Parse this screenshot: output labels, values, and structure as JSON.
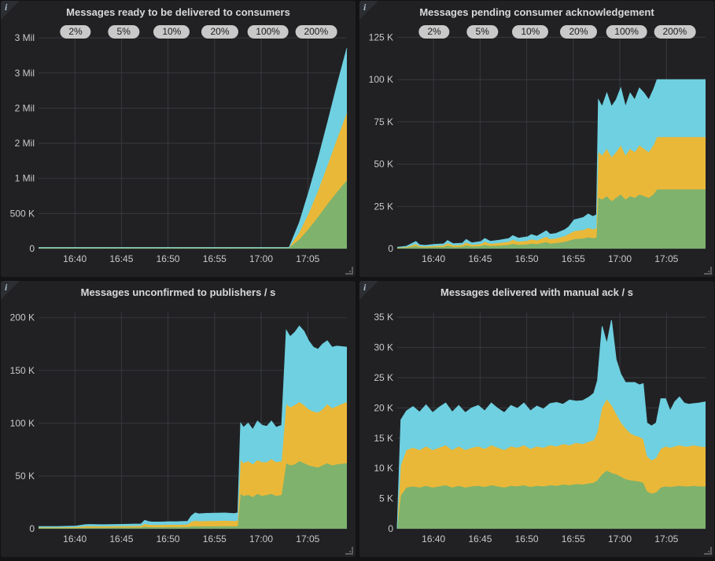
{
  "theme": {
    "page_bg": "#131316",
    "panel_bg": "#212124",
    "grid_color": "#37393d",
    "tick_text_color": "#c8c9cb",
    "title_color": "#d8d9da",
    "badge_bg": "#c9c9c9",
    "badge_text": "#1b1d1f",
    "series_green": "#7EB26D",
    "series_yellow": "#EAB839",
    "series_blue": "#6ED0E0"
  },
  "panels": [
    {
      "title": "Messages ready to be delivered to consumers",
      "badges": [
        "2%",
        "5%",
        "10%",
        "20%",
        "100%",
        "200%"
      ],
      "chart": 0
    },
    {
      "title": "Messages pending consumer acknowledgement",
      "badges": [
        "2%",
        "5%",
        "10%",
        "20%",
        "100%",
        "200%"
      ],
      "chart": 1
    },
    {
      "title": "Messages unconfirmed to publishers / s",
      "badges": [],
      "chart": 2
    },
    {
      "title": "Messages delivered with manual ack / s",
      "badges": [],
      "chart": 3
    }
  ],
  "chart_data": [
    {
      "type": "area",
      "stacked": true,
      "title": "Messages ready to be delivered to consumers",
      "legend": "none",
      "grid": true,
      "xlim": [
        0,
        33.1
      ],
      "ylim": [
        0,
        3080000
      ],
      "x_ticks": [
        {
          "t": 3.9,
          "label": "16:40"
        },
        {
          "t": 8.9,
          "label": "16:45"
        },
        {
          "t": 13.9,
          "label": "16:50"
        },
        {
          "t": 18.9,
          "label": "16:55"
        },
        {
          "t": 23.9,
          "label": "17:00"
        },
        {
          "t": 28.9,
          "label": "17:05"
        }
      ],
      "y_ticks": [
        {
          "v": 0,
          "label": "0"
        },
        {
          "v": 500000,
          "label": "500 K"
        },
        {
          "v": 1000000,
          "label": "1 Mil"
        },
        {
          "v": 1500000,
          "label": "2 Mil"
        },
        {
          "v": 2000000,
          "label": "2 Mil"
        },
        {
          "v": 2500000,
          "label": "3 Mil"
        },
        {
          "v": 3000000,
          "label": "3 Mil"
        }
      ],
      "x": [
        0,
        26.9,
        28,
        29,
        30,
        31,
        32,
        33.1
      ],
      "series": [
        {
          "name": "series-green",
          "color": "#7EB26D",
          "values": [
            15000,
            15000,
            130000,
            280000,
            450000,
            630000,
            800000,
            970000
          ]
        },
        {
          "name": "series-yellow",
          "color": "#EAB839",
          "values": [
            0,
            0,
            100000,
            220000,
            370000,
            545000,
            745000,
            960000
          ]
        },
        {
          "name": "series-blue",
          "color": "#6ED0E0",
          "values": [
            0,
            0,
            140000,
            300000,
            450000,
            600000,
            760000,
            920000
          ]
        }
      ]
    },
    {
      "type": "area",
      "stacked": true,
      "title": "Messages pending consumer acknowledgement",
      "legend": "none",
      "grid": true,
      "xlim": [
        0,
        33.1
      ],
      "ylim": [
        0,
        128000
      ],
      "x_ticks": [
        {
          "t": 3.9,
          "label": "16:40"
        },
        {
          "t": 8.9,
          "label": "16:45"
        },
        {
          "t": 13.9,
          "label": "16:50"
        },
        {
          "t": 18.9,
          "label": "16:55"
        },
        {
          "t": 23.9,
          "label": "17:00"
        },
        {
          "t": 28.9,
          "label": "17:05"
        }
      ],
      "y_ticks": [
        {
          "v": 0,
          "label": "0"
        },
        {
          "v": 25000,
          "label": "25 K"
        },
        {
          "v": 50000,
          "label": "50 K"
        },
        {
          "v": 75000,
          "label": "75 K"
        },
        {
          "v": 100000,
          "label": "100 K"
        },
        {
          "v": 125000,
          "label": "125 K"
        }
      ],
      "x": [
        0,
        1,
        2,
        2.4,
        3,
        4,
        5,
        5.4,
        6,
        7,
        7.4,
        8,
        9,
        9.4,
        10,
        11,
        12,
        12.4,
        13,
        14,
        14.4,
        15,
        16,
        16.4,
        17,
        18,
        18.4,
        19,
        20,
        20.5,
        21,
        21.4,
        21.6,
        22,
        22.5,
        23,
        23.5,
        24,
        24.5,
        25,
        25.5,
        26,
        26.5,
        27,
        27.5,
        27.9,
        29,
        33.1
      ],
      "series": [
        {
          "name": "series-green",
          "color": "#7EB26D",
          "values": [
            300,
            500,
            1500,
            800,
            700,
            900,
            1000,
            1800,
            1000,
            1100,
            2000,
            1200,
            1500,
            2200,
            1500,
            1800,
            2200,
            2800,
            2200,
            2500,
            3000,
            2600,
            3800,
            3000,
            3200,
            4000,
            4600,
            5600,
            6000,
            6600,
            6200,
            6500,
            30000,
            29000,
            31000,
            28000,
            30000,
            32000,
            29000,
            31000,
            30000,
            32000,
            31000,
            30000,
            32000,
            35000,
            35000,
            35000
          ]
        },
        {
          "name": "series-yellow",
          "color": "#EAB839",
          "values": [
            200,
            400,
            1200,
            600,
            500,
            700,
            800,
            1400,
            900,
            1000,
            1600,
            1000,
            1200,
            1800,
            1300,
            1500,
            1800,
            2300,
            1900,
            2100,
            2500,
            2200,
            3200,
            2600,
            2700,
            3400,
            3900,
            4700,
            5000,
            5600,
            5200,
            5500,
            27000,
            26000,
            28000,
            26000,
            27000,
            29000,
            26000,
            28000,
            27000,
            29000,
            28000,
            27000,
            29000,
            31000,
            31000,
            31000
          ]
        },
        {
          "name": "series-blue",
          "color": "#6ED0E0",
          "values": [
            300,
            500,
            1500,
            800,
            700,
            900,
            1000,
            1600,
            1000,
            1100,
            1800,
            1200,
            1500,
            2000,
            1500,
            1700,
            2000,
            2600,
            2100,
            2400,
            2800,
            2500,
            3500,
            2900,
            3000,
            3800,
            4300,
            6700,
            7500,
            8300,
            7600,
            8000,
            31000,
            29000,
            33000,
            30000,
            31000,
            34000,
            29000,
            33000,
            31000,
            34000,
            33000,
            31000,
            33000,
            34000,
            34000,
            34000
          ]
        }
      ]
    },
    {
      "type": "area",
      "stacked": true,
      "title": "Messages unconfirmed to publishers / s",
      "legend": "none",
      "grid": true,
      "xlim": [
        0,
        33.1
      ],
      "ylim": [
        0,
        205000
      ],
      "x_ticks": [
        {
          "t": 3.9,
          "label": "16:40"
        },
        {
          "t": 8.9,
          "label": "16:45"
        },
        {
          "t": 13.9,
          "label": "16:50"
        },
        {
          "t": 18.9,
          "label": "16:55"
        },
        {
          "t": 23.9,
          "label": "17:00"
        },
        {
          "t": 28.9,
          "label": "17:05"
        }
      ],
      "y_ticks": [
        {
          "v": 0,
          "label": "0"
        },
        {
          "v": 50000,
          "label": "50 K"
        },
        {
          "v": 100000,
          "label": "100 K"
        },
        {
          "v": 150000,
          "label": "150 K"
        },
        {
          "v": 200000,
          "label": "200 K"
        }
      ],
      "x": [
        0,
        2,
        4,
        5,
        5.5,
        7,
        9,
        11,
        11.4,
        11.8,
        12.2,
        13,
        14,
        15,
        16,
        16.4,
        16.8,
        17.2,
        18,
        19,
        20,
        21,
        21.4,
        21.7,
        22,
        22.5,
        23,
        23.5,
        24,
        24.5,
        25,
        25.5,
        26.1,
        26.6,
        27,
        27.5,
        28,
        28.5,
        29,
        29.5,
        30,
        30.5,
        31,
        31.5,
        32,
        33.1
      ],
      "series": [
        {
          "name": "series-green",
          "color": "#7EB26D",
          "values": [
            600,
            600,
            700,
            1000,
            1000,
            1000,
            1100,
            1200,
            2000,
            1600,
            1500,
            1500,
            1600,
            1600,
            1700,
            2000,
            2200,
            2100,
            2200,
            2200,
            2300,
            2300,
            2400,
            33000,
            31000,
            32000,
            30000,
            33000,
            31000,
            32000,
            33000,
            31000,
            32000,
            62000,
            60000,
            61000,
            64000,
            62000,
            60000,
            59000,
            58000,
            60000,
            62000,
            60000,
            61000,
            62000
          ]
        },
        {
          "name": "series-yellow",
          "color": "#EAB839",
          "values": [
            600,
            600,
            800,
            1200,
            1300,
            1200,
            1300,
            1400,
            2500,
            2200,
            2000,
            2000,
            2100,
            2100,
            2200,
            4500,
            5300,
            5000,
            5100,
            5200,
            5200,
            5000,
            5200,
            32000,
            31000,
            32000,
            31000,
            32000,
            32000,
            31000,
            33000,
            32000,
            32000,
            56000,
            55000,
            56000,
            56000,
            55000,
            53000,
            52000,
            52000,
            53000,
            56000,
            54000,
            55000,
            58000
          ]
        },
        {
          "name": "series-blue",
          "color": "#6ED0E0",
          "values": [
            800,
            800,
            1000,
            1600,
            1700,
            1600,
            1700,
            1900,
            3500,
            3000,
            2800,
            2800,
            2900,
            3000,
            3100,
            5500,
            7500,
            7000,
            7200,
            7300,
            7400,
            7000,
            7400,
            35000,
            34000,
            36000,
            33000,
            37000,
            35000,
            34000,
            36000,
            33000,
            34000,
            70000,
            67000,
            69000,
            72000,
            70000,
            65000,
            61000,
            60000,
            62000,
            60000,
            58000,
            57000,
            52000
          ]
        }
      ]
    },
    {
      "type": "area",
      "stacked": true,
      "title": "Messages delivered with manual ack / s",
      "legend": "none",
      "grid": true,
      "xlim": [
        0,
        33.1
      ],
      "ylim": [
        0,
        35800
      ],
      "x_ticks": [
        {
          "t": 3.9,
          "label": "16:40"
        },
        {
          "t": 8.9,
          "label": "16:45"
        },
        {
          "t": 13.9,
          "label": "16:50"
        },
        {
          "t": 18.9,
          "label": "16:55"
        },
        {
          "t": 23.9,
          "label": "17:00"
        },
        {
          "t": 28.9,
          "label": "17:05"
        }
      ],
      "y_ticks": [
        {
          "v": 0,
          "label": "0"
        },
        {
          "v": 5000,
          "label": "5 K"
        },
        {
          "v": 10000,
          "label": "10 K"
        },
        {
          "v": 15000,
          "label": "15 K"
        },
        {
          "v": 20000,
          "label": "20 K"
        },
        {
          "v": 25000,
          "label": "25 K"
        },
        {
          "v": 30000,
          "label": "30 K"
        },
        {
          "v": 35000,
          "label": "35 K"
        }
      ],
      "x": [
        0,
        0.4,
        1,
        1.7,
        2.4,
        3.1,
        3.8,
        4.5,
        5.2,
        5.9,
        6.6,
        7.3,
        8,
        8.7,
        9.4,
        10.1,
        10.8,
        11.5,
        12.2,
        12.9,
        13.6,
        14.3,
        15,
        15.7,
        16.4,
        17.1,
        17.8,
        18.5,
        19.2,
        19.9,
        20.6,
        21.1,
        21.5,
        22,
        22.5,
        23,
        23.5,
        24,
        24.5,
        25,
        25.5,
        26,
        26.4,
        26.8,
        27.3,
        27.8,
        28.3,
        28.8,
        29.3,
        29.8,
        30.3,
        30.8,
        31.3,
        31.8,
        32.4,
        33.1
      ],
      "series": [
        {
          "name": "series-green",
          "color": "#7EB26D",
          "values": [
            0,
            5500,
            6800,
            7000,
            6800,
            7100,
            6800,
            7000,
            7200,
            6800,
            7100,
            6800,
            7000,
            7100,
            6900,
            7200,
            7000,
            6800,
            7100,
            7000,
            7200,
            6900,
            7100,
            7000,
            7200,
            7100,
            7300,
            7200,
            7400,
            7300,
            7500,
            7600,
            8000,
            9000,
            9600,
            9200,
            9000,
            8600,
            8200,
            8000,
            7900,
            7800,
            7600,
            6200,
            5800,
            6000,
            6800,
            7000,
            6900,
            7000,
            7100,
            7000,
            7000,
            7100,
            7000,
            7000
          ]
        },
        {
          "name": "series-yellow",
          "color": "#EAB839",
          "values": [
            0,
            5000,
            6200,
            6400,
            6200,
            6500,
            6200,
            6400,
            6600,
            6200,
            6500,
            6200,
            6400,
            6500,
            6300,
            6600,
            6400,
            6200,
            6500,
            6400,
            6600,
            6300,
            6500,
            6400,
            6600,
            6500,
            6700,
            6600,
            6800,
            6700,
            6900,
            7000,
            8000,
            11000,
            11800,
            11200,
            10000,
            9000,
            8400,
            7800,
            7500,
            7400,
            7200,
            5800,
            5500,
            5700,
            6400,
            6600,
            6500,
            6600,
            6700,
            6600,
            6600,
            6700,
            6600,
            6500
          ]
        },
        {
          "name": "series-blue",
          "color": "#6ED0E0",
          "values": [
            0,
            7500,
            6500,
            6800,
            6300,
            6900,
            6200,
            6700,
            7000,
            6300,
            6800,
            6200,
            6600,
            6800,
            6300,
            7000,
            6500,
            6200,
            6800,
            6500,
            7000,
            6300,
            6700,
            6400,
            6900,
            7300,
            6600,
            7500,
            6900,
            7200,
            7400,
            7800,
            8500,
            13500,
            9200,
            14100,
            9000,
            8000,
            7600,
            8400,
            8800,
            8600,
            9200,
            5500,
            5700,
            5800,
            8300,
            7900,
            6100,
            7400,
            8000,
            7200,
            7000,
            6900,
            7200,
            7500
          ]
        }
      ]
    }
  ],
  "info_icon_glyph": "i"
}
